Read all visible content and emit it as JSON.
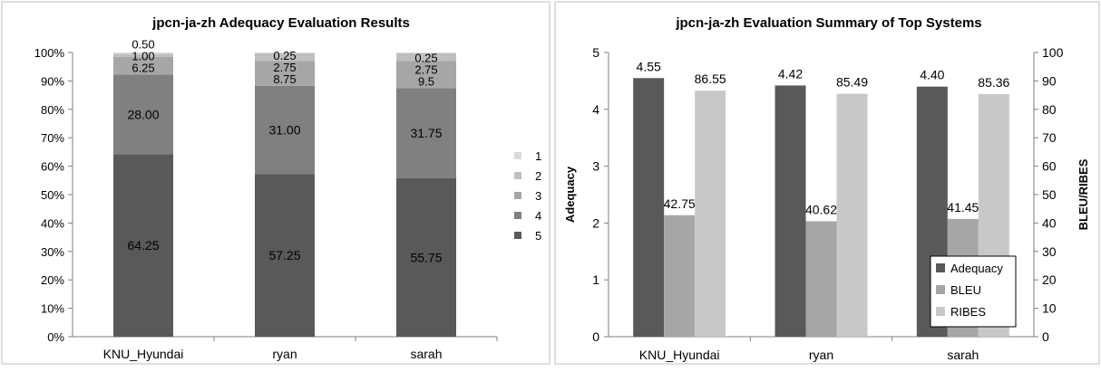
{
  "chart_data": [
    {
      "type": "bar",
      "stacked": true,
      "percent": true,
      "title": "jpcn-ja-zh Adequacy Evaluation Results",
      "categories": [
        "KNU_Hyundai",
        "ryan",
        "sarah"
      ],
      "series": [
        {
          "name": "5",
          "values": [
            64.25,
            57.25,
            55.75
          ],
          "labels": [
            "64.25",
            "57.25",
            "55.75"
          ],
          "color": "#595959"
        },
        {
          "name": "4",
          "values": [
            28.0,
            31.0,
            31.75
          ],
          "labels": [
            "28.00",
            "31.00",
            "31.75"
          ],
          "color": "#808080"
        },
        {
          "name": "3",
          "values": [
            6.25,
            8.75,
            9.5
          ],
          "labels": [
            "6.25",
            "8.75",
            "9.5"
          ],
          "color": "#a6a6a6"
        },
        {
          "name": "2",
          "values": [
            1.0,
            2.75,
            2.75
          ],
          "labels": [
            "1.00",
            "2.75",
            "2.75"
          ],
          "color": "#bfbfbf"
        },
        {
          "name": "1",
          "values": [
            0.5,
            0.25,
            0.25
          ],
          "labels": [
            "0.50",
            "0.25",
            "0.25"
          ],
          "color": "#d9d9d9"
        }
      ],
      "yticks": [
        "0%",
        "10%",
        "20%",
        "30%",
        "40%",
        "50%",
        "60%",
        "70%",
        "80%",
        "90%",
        "100%"
      ],
      "ylim": [
        0,
        100
      ],
      "legend": [
        "1",
        "2",
        "3",
        "4",
        "5"
      ],
      "legend_position": "right"
    },
    {
      "type": "bar",
      "title": "jpcn-ja-zh Evaluation Summary of Top Systems",
      "categories": [
        "KNU_Hyundai",
        "ryan",
        "sarah"
      ],
      "ylabel": "Adequacy",
      "y2label": "BLEU/RIBES",
      "ylim": [
        0,
        5
      ],
      "y2lim": [
        0,
        100
      ],
      "yticks": [
        "0",
        "1",
        "2",
        "3",
        "4",
        "5"
      ],
      "y2ticks": [
        "0",
        "10",
        "20",
        "30",
        "40",
        "50",
        "60",
        "70",
        "80",
        "90",
        "100"
      ],
      "series": [
        {
          "name": "Adequacy",
          "axis": "left",
          "values": [
            4.55,
            4.42,
            4.4
          ],
          "labels": [
            "4.55",
            "4.42",
            "4.40"
          ],
          "color": "#595959"
        },
        {
          "name": "BLEU",
          "axis": "right",
          "values": [
            42.75,
            40.62,
            41.45
          ],
          "labels": [
            "42.75",
            "40.62",
            "41.45"
          ],
          "color": "#a6a6a6"
        },
        {
          "name": "RIBES",
          "axis": "right",
          "values": [
            86.55,
            85.49,
            85.36
          ],
          "labels": [
            "86.55",
            "85.49",
            "85.36"
          ],
          "color": "#c8c8c8"
        }
      ],
      "legend_position": "bottom-right"
    }
  ]
}
